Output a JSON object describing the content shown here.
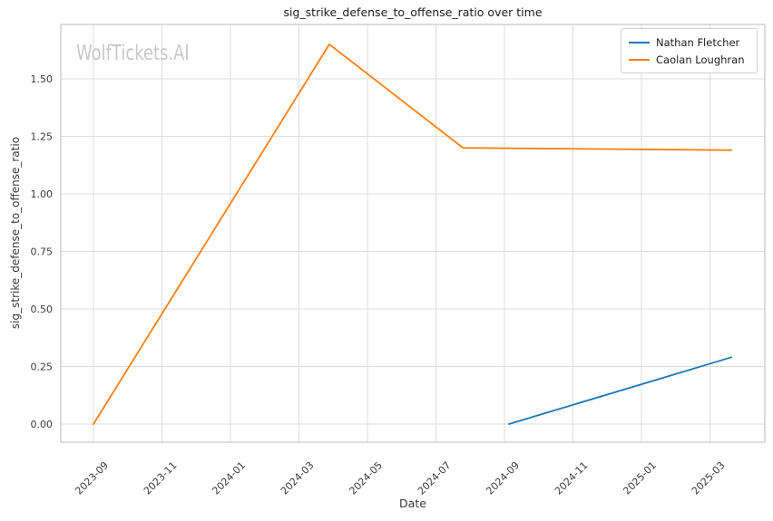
{
  "watermark": "WolfTickets.AI",
  "colors": {
    "background": "#ffffff",
    "grid": "#dcdcdc",
    "plot_border": "#c6c6c6",
    "title_text": "#1c1c1c",
    "tick_text": "#3a3a3a",
    "watermark_text": "#c8c8c8",
    "series_blue": "#1f77b4",
    "series_orange": "#ff7f0e"
  },
  "chart_data": {
    "type": "line",
    "title": "sig_strike_defense_to_offense_ratio over time",
    "xlabel": "Date",
    "ylabel": "sig_strike_defense_to_offense_ratio",
    "grid": true,
    "legend_position": "upper right",
    "x_tick_labels": [
      "2023-09",
      "2023-11",
      "2024-01",
      "2024-03",
      "2024-05",
      "2024-07",
      "2024-09",
      "2024-11",
      "2025-01",
      "2025-03"
    ],
    "y_tick_labels": [
      "0.00",
      "0.25",
      "0.50",
      "0.75",
      "1.00",
      "1.25",
      "1.50"
    ],
    "ylim": [
      -0.08,
      1.74
    ],
    "xlim": [
      "2023-08-02",
      "2025-04-19"
    ],
    "series": [
      {
        "name": "Nathan Fletcher",
        "color": "#1f77b4",
        "points": [
          {
            "date": "2024-09-05",
            "value": 0.0
          },
          {
            "date": "2025-03-20",
            "value": 0.29
          }
        ]
      },
      {
        "name": "Caolan Loughran",
        "color": "#ff7f0e",
        "points": [
          {
            "date": "2023-09-01",
            "value": 0.0
          },
          {
            "date": "2024-03-28",
            "value": 1.65
          },
          {
            "date": "2024-07-25",
            "value": 1.2
          },
          {
            "date": "2025-03-20",
            "value": 1.19
          }
        ]
      }
    ]
  }
}
